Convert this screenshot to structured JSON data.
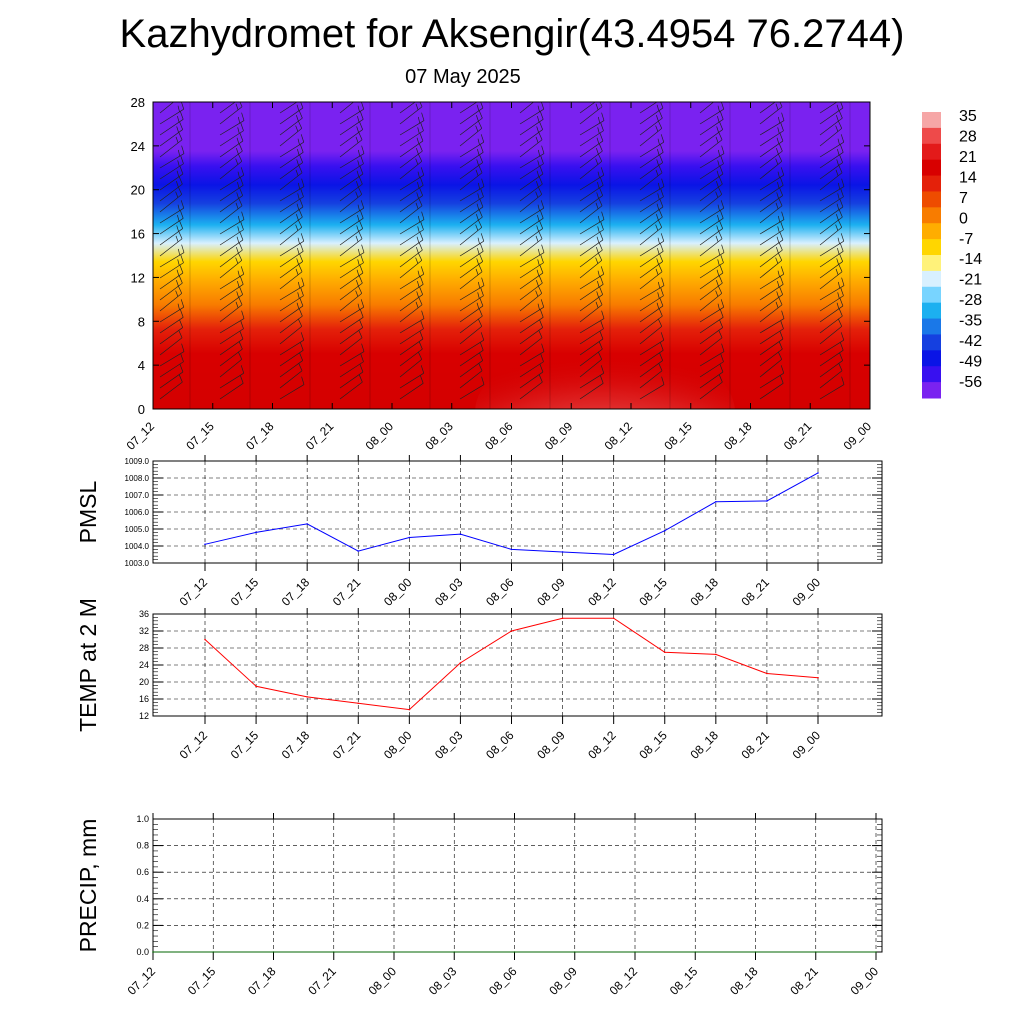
{
  "title": "Kazhydromet for Aksengir(43.4954 76.2744)",
  "subtitle": "07 May 2025",
  "chart_data": [
    {
      "type": "heatmap",
      "description_field": "cross-section temperature with wind barbs",
      "x_tick_labels": [
        "07_12",
        "07_15",
        "07_18",
        "07_21",
        "08_00",
        "08_03",
        "08_06",
        "08_09",
        "08_12",
        "08_15",
        "08_18",
        "08_21",
        "09_00"
      ],
      "y_tick_labels": [
        "0",
        "4",
        "8",
        "12",
        "16",
        "20",
        "24",
        "28"
      ],
      "ylim": [
        0,
        28
      ],
      "colorbar_labels": [
        "35",
        "28",
        "21",
        "14",
        "7",
        "0",
        "-7",
        "-14",
        "-21",
        "-28",
        "-35",
        "-42",
        "-49",
        "-56"
      ],
      "colorbar_colors": [
        "#f6a6a6",
        "#ee4a4a",
        "#e31a1a",
        "#d80000",
        "#e4210a",
        "#ee4c00",
        "#f87c00",
        "#ffad00",
        "#ffd600",
        "#fff27a",
        "#d8f0ff",
        "#78d4ff",
        "#1cb0f0",
        "#1a78e8",
        "#1540e0",
        "#0a14e6",
        "#3810f0",
        "#7a22f0"
      ],
      "series": []
    },
    {
      "type": "line",
      "ylabel": "PMSL",
      "x_tick_labels": [
        "07_12",
        "07_15",
        "07_18",
        "07_21",
        "08_00",
        "08_03",
        "08_06",
        "08_09",
        "08_12",
        "08_15",
        "08_18",
        "08_21",
        "09_00"
      ],
      "y_tick_labels": [
        "1003.0",
        "1004.0",
        "1005.0",
        "1006.0",
        "1007.0",
        "1008.0",
        "1009.0"
      ],
      "ylim": [
        1003.0,
        1009.0
      ],
      "color": "#0000ff",
      "values": [
        1004.1,
        1004.8,
        1005.3,
        1003.7,
        1004.5,
        1004.7,
        1003.8,
        1003.65,
        1003.5,
        1004.9,
        1006.6,
        1006.65,
        1008.3
      ]
    },
    {
      "type": "line",
      "ylabel": "TEMP at 2 M",
      "x_tick_labels": [
        "07_12",
        "07_15",
        "07_18",
        "07_21",
        "08_00",
        "08_03",
        "08_06",
        "08_09",
        "08_12",
        "08_15",
        "08_18",
        "08_21",
        "09_00"
      ],
      "y_tick_labels": [
        "12",
        "16",
        "20",
        "24",
        "28",
        "32",
        "36"
      ],
      "ylim": [
        12,
        36
      ],
      "color": "#ff0000",
      "values": [
        30.0,
        19.0,
        16.5,
        15.0,
        13.5,
        24.5,
        32.0,
        35.0,
        35.0,
        27.0,
        26.5,
        22.0,
        21.0
      ]
    },
    {
      "type": "line",
      "ylabel": "PRECIP, mm",
      "x_tick_labels": [
        "07_12",
        "07_15",
        "07_18",
        "07_21",
        "08_00",
        "08_03",
        "08_06",
        "08_09",
        "08_12",
        "08_15",
        "08_18",
        "08_21",
        "09_00"
      ],
      "y_tick_labels": [
        "0.0",
        "0.2",
        "0.4",
        "0.6",
        "0.8",
        "1.0"
      ],
      "ylim": [
        0.0,
        1.0
      ],
      "color": "#006400",
      "values": [
        0,
        0,
        0,
        0,
        0,
        0,
        0,
        0,
        0,
        0,
        0,
        0,
        0
      ]
    }
  ]
}
